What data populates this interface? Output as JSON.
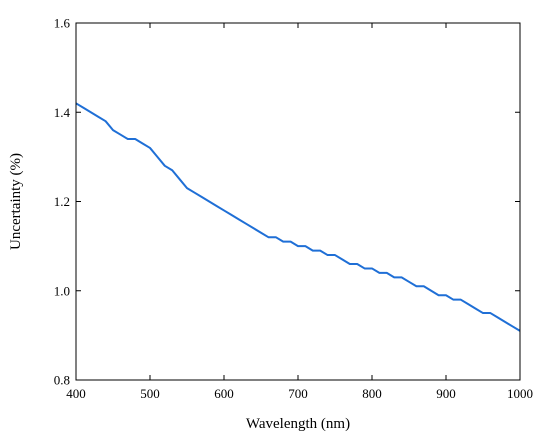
{
  "chart_data": {
    "type": "line",
    "title": "",
    "xlabel": "Wavelength (nm)",
    "ylabel": "Uncertainty (%)",
    "xlim": [
      400,
      1000
    ],
    "ylim": [
      0.8,
      1.6
    ],
    "xticks": [
      400,
      500,
      600,
      700,
      800,
      900,
      1000
    ],
    "yticks": [
      0.8,
      1.0,
      1.2,
      1.4,
      1.6
    ],
    "xtick_labels": [
      "400",
      "500",
      "600",
      "700",
      "800",
      "900",
      "1000"
    ],
    "ytick_labels": [
      "0.8",
      "1.0",
      "1.2",
      "1.4",
      "1.6"
    ],
    "grid": false,
    "legend": "none",
    "colors": {
      "line": "#1f6fd6",
      "axis": "#000000"
    },
    "series": [
      {
        "x": [
          400,
          410,
          420,
          430,
          440,
          450,
          460,
          470,
          480,
          490,
          500,
          510,
          520,
          530,
          540,
          550,
          560,
          570,
          580,
          590,
          600,
          610,
          620,
          630,
          640,
          650,
          660,
          670,
          680,
          690,
          700,
          710,
          720,
          730,
          740,
          750,
          760,
          770,
          780,
          790,
          800,
          810,
          820,
          830,
          840,
          850,
          860,
          870,
          880,
          890,
          900,
          910,
          920,
          930,
          940,
          950,
          960,
          970,
          980,
          990,
          1000
        ],
        "y": [
          1.42,
          1.41,
          1.4,
          1.39,
          1.38,
          1.36,
          1.35,
          1.34,
          1.34,
          1.33,
          1.32,
          1.3,
          1.28,
          1.27,
          1.25,
          1.23,
          1.22,
          1.21,
          1.2,
          1.19,
          1.18,
          1.17,
          1.16,
          1.15,
          1.14,
          1.13,
          1.12,
          1.12,
          1.11,
          1.11,
          1.1,
          1.1,
          1.09,
          1.09,
          1.08,
          1.08,
          1.07,
          1.06,
          1.06,
          1.05,
          1.05,
          1.04,
          1.04,
          1.03,
          1.03,
          1.02,
          1.01,
          1.01,
          1.0,
          0.99,
          0.99,
          0.98,
          0.98,
          0.97,
          0.96,
          0.95,
          0.95,
          0.94,
          0.93,
          0.92,
          0.91
        ]
      }
    ]
  }
}
